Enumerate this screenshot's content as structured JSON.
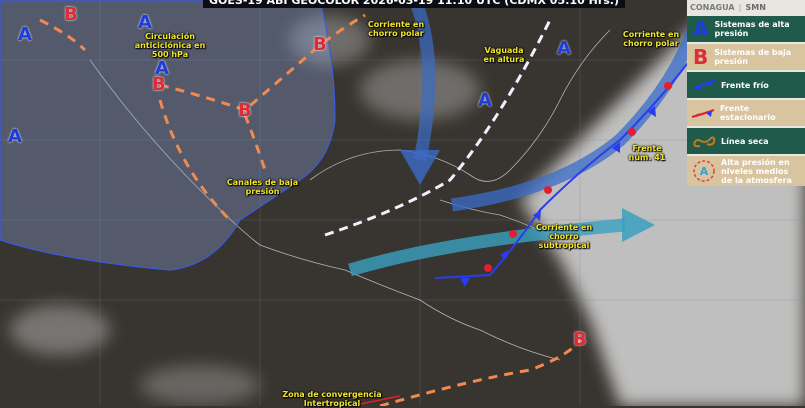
{
  "header": {
    "title": "GOES-19 ABI GEOCOLOR 2026-03-19 11:10 UTC (CDMX 05:10 Hrs.)"
  },
  "legend": {
    "logos": [
      "CONAGUA",
      "SMN"
    ],
    "items": [
      {
        "symbol": "A",
        "label": "Sistemas de alta presión",
        "icon": "high-pressure-icon",
        "color": "#1a3ce0"
      },
      {
        "symbol": "B",
        "label": "Sistemas de baja presión",
        "icon": "low-pressure-icon",
        "color": "#e02a38"
      },
      {
        "label": "Frente frío",
        "icon": "cold-front-icon"
      },
      {
        "label": "Frente estacionario",
        "icon": "stationary-front-icon"
      },
      {
        "label": "Línea seca",
        "icon": "dry-line-icon"
      },
      {
        "symbol": "A",
        "label": "Alta presión en niveles medios de la atmosfera",
        "icon": "mid-level-high-icon"
      }
    ]
  },
  "labels": {
    "anticyclone": "Circulación anticiclónica en 500 hPa",
    "polar_jet_1": "Corriente en chorro polar",
    "polar_jet_2": "Corriente en chorro polar",
    "trough": "Vaguada en altura",
    "low_channels": "Canales de baja presión",
    "front": "Frente núm. 41",
    "subtropical_jet": "Corriente en chorro subtropical",
    "itcz": "Zona de convergencia Intertropical"
  },
  "symbols": {
    "high": "A",
    "low": "B"
  },
  "colors": {
    "high": "#1a3ce0",
    "low": "#e02a38",
    "label": "#f2e62a",
    "trough": "#f0f0ff",
    "low_channel": "#f08a50",
    "polar_jet": "#3a6cc8",
    "subtropical_jet": "#3aa0c0"
  }
}
